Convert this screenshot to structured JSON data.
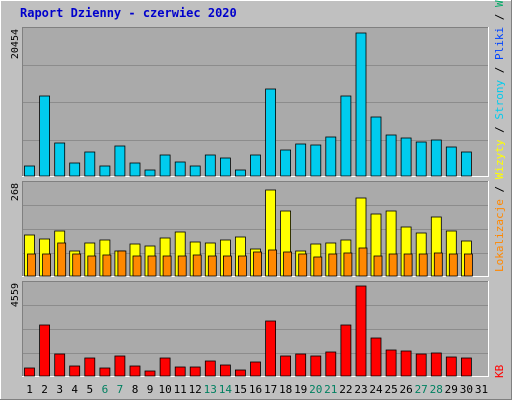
{
  "title": "Raport Dzienny -  czerwiec 2020",
  "colors": {
    "background": "#c0c0c0",
    "panel": "#aaaaaa",
    "title": "#0000cc",
    "visits": "#00ccee",
    "sites": "#ffff00",
    "pages": "#ff8800",
    "files": "#0044ff",
    "hits": "#00aa66",
    "kb": "#ff0000",
    "weekend": "#008060",
    "axis_text": "#000000"
  },
  "legend": {
    "hits": "Wywołania",
    "files": "Pliki",
    "pages": "Strony",
    "visits": "Wizyty",
    "sites": "Lokalizacje",
    "kb": "KB",
    "sep": "/"
  },
  "chart_data": [
    {
      "type": "bar",
      "name": "panel-1",
      "ymax_label": "20454",
      "ylim": [
        0,
        20454
      ],
      "x": [
        1,
        2,
        3,
        4,
        5,
        6,
        7,
        8,
        9,
        10,
        11,
        12,
        13,
        14,
        15,
        16,
        17,
        18,
        19,
        20,
        21,
        22,
        23,
        24,
        25,
        26,
        27,
        28,
        29,
        30,
        31
      ],
      "weekend_days": [
        6,
        7,
        13,
        14,
        20,
        21,
        27,
        28
      ],
      "series": [
        {
          "key": "visits",
          "values": [
            1400,
            11200,
            4600,
            1800,
            3300,
            1400,
            4200,
            1800,
            800,
            3000,
            2000,
            1400,
            3000,
            2500,
            900,
            3000,
            12200,
            3700,
            4500,
            4400,
            5500,
            11200,
            20000,
            8200,
            5800,
            5300,
            4800,
            5100,
            4000,
            3300,
            0
          ]
        }
      ]
    },
    {
      "type": "bar",
      "name": "panel-2",
      "ymax_label": "268",
      "ylim": [
        0,
        268
      ],
      "x": [
        1,
        2,
        3,
        4,
        5,
        6,
        7,
        8,
        9,
        10,
        11,
        12,
        13,
        14,
        15,
        16,
        17,
        18,
        19,
        20,
        21,
        22,
        23,
        24,
        25,
        26,
        27,
        28,
        29,
        30,
        31
      ],
      "series": [
        {
          "key": "sites",
          "values": [
            120,
            108,
            130,
            73,
            96,
            104,
            73,
            93,
            86,
            110,
            128,
            100,
            96,
            104,
            114,
            80,
            250,
            188,
            72,
            93,
            97,
            106,
            226,
            182,
            188,
            144,
            124,
            173,
            130,
            103,
            0
          ]
        },
        {
          "key": "pages",
          "values": [
            64,
            64,
            95,
            64,
            58,
            62,
            73,
            57,
            57,
            57,
            58,
            62,
            57,
            57,
            58,
            70,
            75,
            70,
            64,
            55,
            64,
            68,
            82,
            58,
            64,
            64,
            64,
            68,
            64,
            64,
            0
          ]
        }
      ]
    },
    {
      "type": "bar",
      "name": "panel-3",
      "ymax_label": "4559",
      "ylim": [
        0,
        4559
      ],
      "x": [
        1,
        2,
        3,
        4,
        5,
        6,
        7,
        8,
        9,
        10,
        11,
        12,
        13,
        14,
        15,
        16,
        17,
        18,
        19,
        20,
        21,
        22,
        23,
        24,
        25,
        26,
        27,
        28,
        29,
        30,
        31
      ],
      "series": [
        {
          "key": "kb",
          "values": [
            400,
            2550,
            1100,
            500,
            900,
            400,
            1000,
            500,
            250,
            900,
            450,
            450,
            750,
            550,
            300,
            700,
            2750,
            1000,
            1100,
            1000,
            1200,
            2550,
            4450,
            1900,
            1300,
            1250,
            1100,
            1150,
            950,
            900,
            0
          ]
        }
      ]
    }
  ]
}
